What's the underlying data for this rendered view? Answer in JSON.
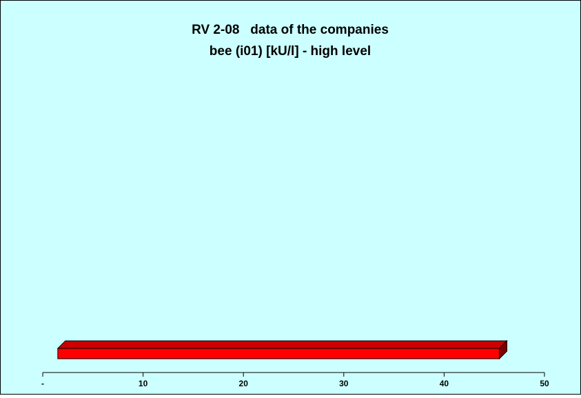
{
  "chart_data": {
    "type": "range-bar",
    "title": [
      "RV 2-08   data of the companies",
      "bee (i01) [kU/l] - high level"
    ],
    "starts": [
      1.5
    ],
    "ends": [
      45.5
    ],
    "color": "#ff0000",
    "xlim": [
      0,
      50
    ],
    "xticks": [
      {
        "value": 0,
        "label": "-"
      },
      10,
      20,
      30,
      40,
      50
    ]
  }
}
